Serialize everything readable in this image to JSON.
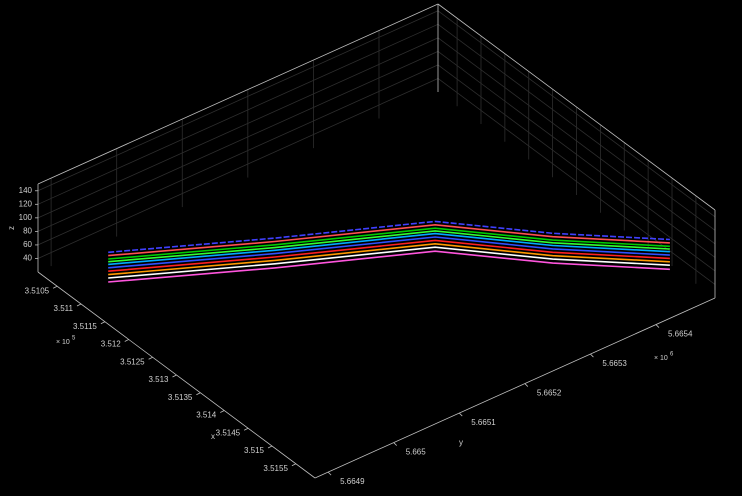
{
  "chart_data": {
    "type": "line3d",
    "xlabel": "x",
    "ylabel": "y",
    "zlabel": "z",
    "x_exponent_base": "× 10",
    "x_exponent": "5",
    "y_exponent_base": "× 10",
    "y_exponent": "6",
    "xlim": [
      3.5101,
      3.5159
    ],
    "ylim": [
      5.66488,
      5.66549
    ],
    "zlim": [
      20,
      150
    ],
    "xticks": [
      3.5105,
      3.511,
      3.5115,
      3.512,
      3.5125,
      3.513,
      3.5135,
      3.514,
      3.5145,
      3.515,
      3.5155
    ],
    "yticks": [
      5.6649,
      5.665,
      5.6651,
      5.6652,
      5.6653,
      5.6654
    ],
    "zticks": [
      40,
      60,
      80,
      100,
      120,
      140
    ],
    "grid": true,
    "x": [
      3.51102,
      3.51204,
      3.51306,
      3.51415,
      3.51523
    ],
    "y": [
      5.66492,
      5.6651,
      5.66527,
      5.66537,
      5.66547
    ],
    "series": [
      {
        "color": "#4040ff",
        "values": [
          80,
          76,
          80,
          76,
          80
        ]
      },
      {
        "color": "#ff5050",
        "values": [
          75,
          71,
          75,
          71,
          75
        ]
      },
      {
        "color": "#00cc00",
        "values": [
          70,
          66,
          70,
          66,
          70
        ]
      },
      {
        "color": "#30ff30",
        "values": [
          66,
          62,
          66,
          62,
          66
        ]
      },
      {
        "color": "#00aaff",
        "values": [
          62,
          58,
          62,
          58,
          62
        ]
      },
      {
        "color": "#3050ff",
        "values": [
          57,
          53,
          57,
          53,
          57
        ]
      },
      {
        "color": "#ff2020",
        "values": [
          52,
          48,
          52,
          48,
          52
        ]
      },
      {
        "color": "#ff9900",
        "values": [
          47,
          43,
          47,
          43,
          47
        ]
      },
      {
        "color": "#ffffff",
        "values": [
          42,
          38,
          42,
          38,
          42
        ]
      },
      {
        "color": "#ff55dd",
        "values": [
          36,
          32,
          36,
          32,
          36
        ]
      }
    ]
  }
}
